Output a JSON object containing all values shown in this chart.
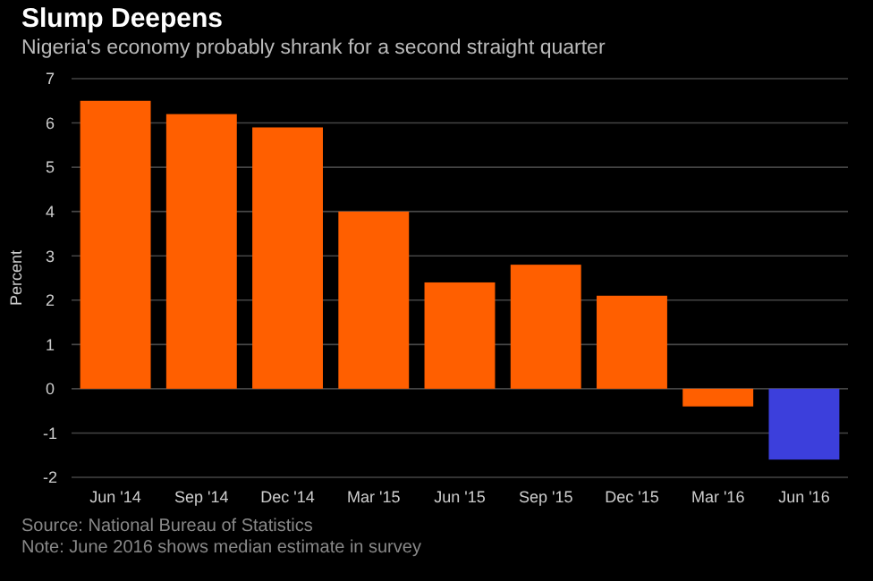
{
  "chart_data": {
    "type": "bar",
    "title": "Slump Deepens",
    "subtitle": "Nigeria's economy probably shrank for a second straight quarter",
    "ylabel": "Percent",
    "categories": [
      "Jun '14",
      "Sep '14",
      "Dec '14",
      "Mar '15",
      "Jun '15",
      "Sep '15",
      "Dec '15",
      "Mar '16",
      "Jun '16"
    ],
    "values": [
      6.5,
      6.2,
      5.9,
      4.0,
      2.4,
      2.8,
      2.1,
      -0.4,
      -1.6
    ],
    "colors": [
      "#ff5f00",
      "#ff5f00",
      "#ff5f00",
      "#ff5f00",
      "#ff5f00",
      "#ff5f00",
      "#ff5f00",
      "#ff5f00",
      "#3c3fdc"
    ],
    "ylim": [
      -2,
      7
    ],
    "yticks": [
      -2,
      -1,
      0,
      1,
      2,
      3,
      4,
      5,
      6,
      7
    ],
    "grid": "y",
    "annotations": [
      "Source: National Bureau of Statistics",
      "Note: June 2016 shows median estimate in survey"
    ]
  }
}
